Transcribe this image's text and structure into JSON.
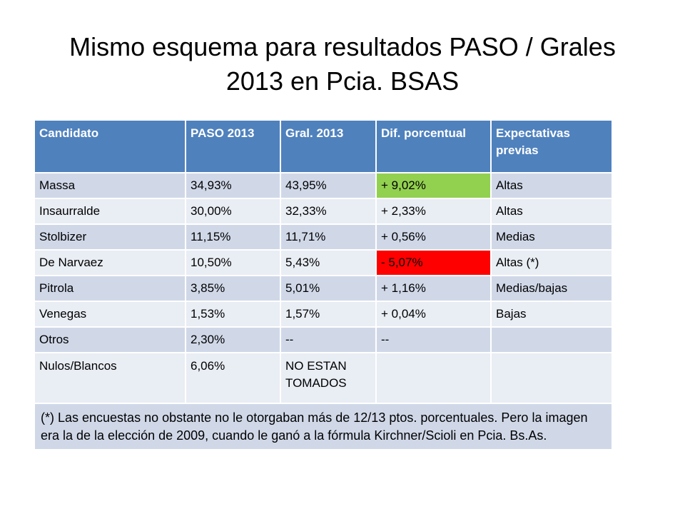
{
  "title": {
    "line1": "Mismo esquema para resultados PASO / Grales",
    "line2": "2013 en Pcia. BSAS"
  },
  "table": {
    "headers": [
      "Candidato",
      "PASO 2013",
      "Gral. 2013",
      "Dif. porcentual",
      "Expectativas previas"
    ],
    "rows": [
      {
        "candidato": "Massa",
        "paso": "34,93%",
        "gral": "43,95%",
        "dif": "+ 9,02%",
        "expectativas": "Altas"
      },
      {
        "candidato": "Insaurralde",
        "paso": "30,00%",
        "gral": "32,33%",
        "dif": "+ 2,33%",
        "expectativas": "Altas"
      },
      {
        "candidato": "Stolbizer",
        "paso": "11,15%",
        "gral": "11,71%",
        "dif": "+ 0,56%",
        "expectativas": "Medias"
      },
      {
        "candidato": "De Narvaez",
        "paso": "10,50%",
        "gral": "5,43%",
        "dif": "- 5,07%",
        "expectativas": "Altas (*)"
      },
      {
        "candidato": "Pitrola",
        "paso": "3,85%",
        "gral": "5,01%",
        "dif": "+ 1,16%",
        "expectativas": "Medias/bajas"
      },
      {
        "candidato": "Venegas",
        "paso": "1,53%",
        "gral": "1,57%",
        "dif": "+ 0,04%",
        "expectativas": "Bajas"
      },
      {
        "candidato": "Otros",
        "paso": "2,30%",
        "gral": "--",
        "dif": "--",
        "expectativas": ""
      },
      {
        "candidato": "Nulos/Blancos",
        "paso": "6,06%",
        "gral": "NO ESTAN TOMADOS",
        "dif": "",
        "expectativas": ""
      }
    ],
    "footnote": "(*) Las encuestas no obstante no le otorgaban más de 12/13 ptos. porcentuales. Pero la imagen era la de la elección de 2009, cuando le ganó a la fórmula Kirchner/Scioli en Pcia. Bs.As."
  },
  "colors": {
    "header_bg": "#4f81bd",
    "row_dark": "#d0d8e8",
    "row_light": "#e9edf4",
    "highlight_positive": "#92d050",
    "highlight_negative": "#ff0000"
  }
}
